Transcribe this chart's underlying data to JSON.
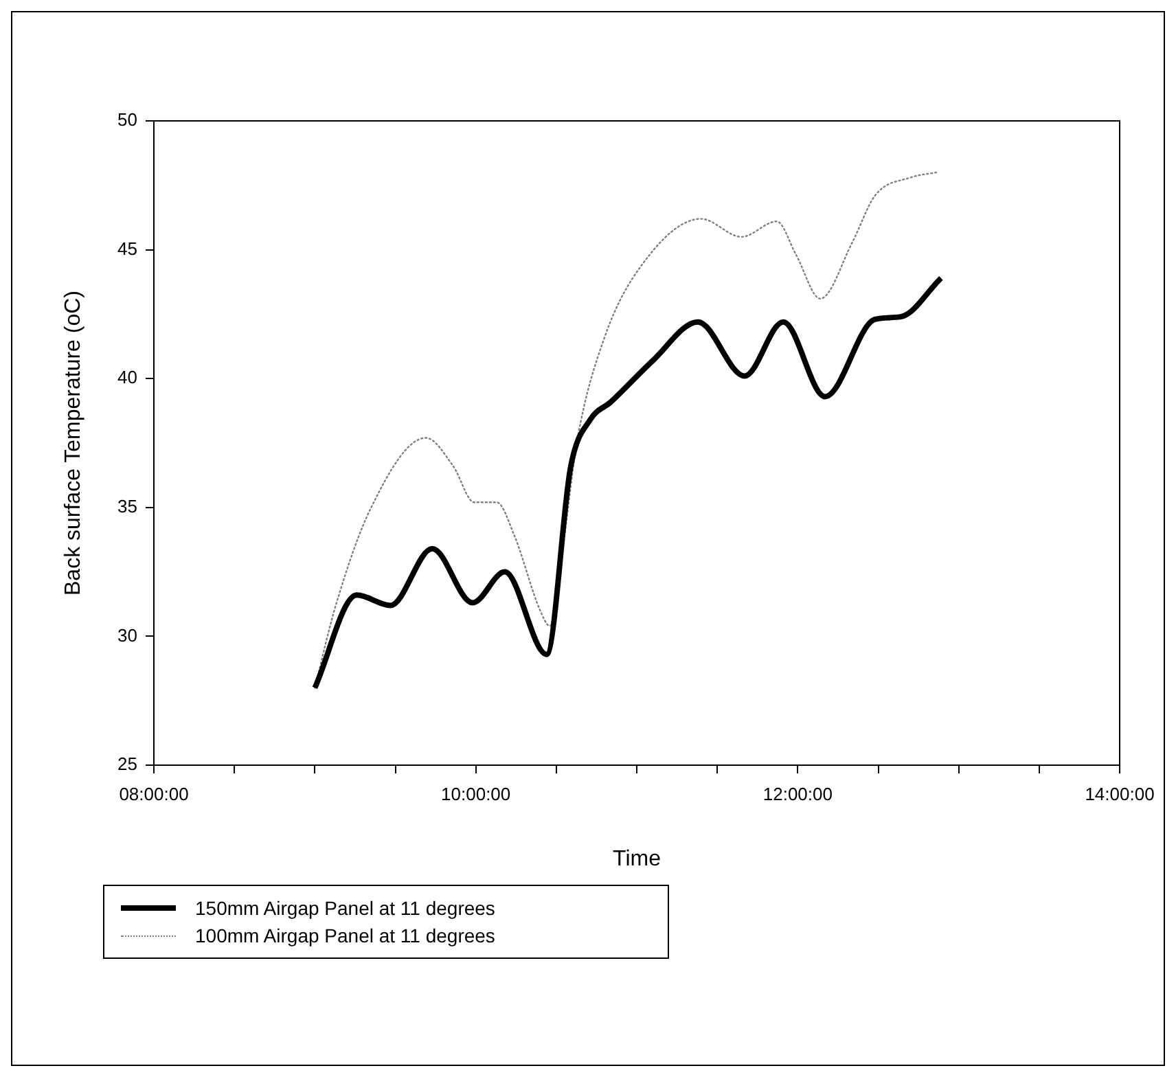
{
  "chart_data": {
    "type": "line",
    "xlabel": "Time",
    "ylabel": "Back surface Temperature (oC)",
    "xlim": [
      8,
      14
    ],
    "xticks": [
      {
        "value": 8,
        "label": "08:00:00"
      },
      {
        "value": 8.5,
        "label": null
      },
      {
        "value": 9,
        "label": null
      },
      {
        "value": 9.5,
        "label": null
      },
      {
        "value": 10,
        "label": "10:00:00"
      },
      {
        "value": 10.5,
        "label": null
      },
      {
        "value": 11,
        "label": null
      },
      {
        "value": 11.5,
        "label": null
      },
      {
        "value": 12,
        "label": "12:00:00"
      },
      {
        "value": 12.5,
        "label": null
      },
      {
        "value": 13,
        "label": null
      },
      {
        "value": 13.5,
        "label": null
      },
      {
        "value": 14,
        "label": "14:00:00"
      }
    ],
    "ylim": [
      25,
      50
    ],
    "yticks": [
      25,
      30,
      35,
      40,
      45,
      50
    ],
    "grid": false,
    "legend": "bottom left",
    "marker": "none",
    "series": [
      {
        "name": "150mm Airgap Panel at 11 degrees",
        "color": "#000000",
        "line_style": "solid",
        "x": [
          9.0,
          9.26,
          9.47,
          9.73,
          9.98,
          10.18,
          10.44,
          10.59,
          10.71,
          10.84,
          11.1,
          11.38,
          11.67,
          11.91,
          12.17,
          12.48,
          12.64,
          12.89
        ],
        "values": [
          28.0,
          31.6,
          31.2,
          33.4,
          31.3,
          32.5,
          29.3,
          36.6,
          38.4,
          39.1,
          40.7,
          42.2,
          40.1,
          42.2,
          39.3,
          42.3,
          42.4,
          43.9
        ]
      },
      {
        "name": "100mm Airgap Panel at 11 degrees",
        "color": "#808080",
        "line_style": "dotted",
        "x": [
          9.0,
          9.13,
          9.35,
          9.69,
          9.86,
          9.99,
          10.13,
          10.24,
          10.4,
          10.46,
          10.54,
          10.63,
          10.8,
          11.03,
          11.4,
          11.65,
          11.87,
          11.99,
          12.14,
          12.34,
          12.48,
          12.7,
          12.86
        ],
        "values": [
          28.0,
          31.2,
          35.0,
          37.7,
          36.6,
          35.2,
          35.2,
          33.9,
          31.0,
          30.4,
          33.4,
          37.6,
          41.6,
          44.4,
          46.2,
          45.5,
          46.1,
          44.8,
          43.1,
          45.3,
          47.1,
          47.8,
          48.0
        ]
      }
    ]
  }
}
